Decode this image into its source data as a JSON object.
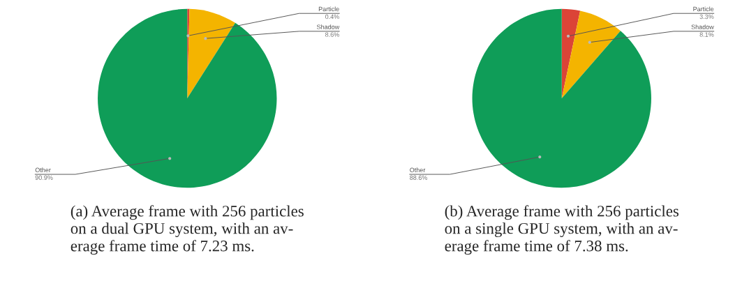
{
  "chart_data": [
    {
      "type": "pie",
      "categories": [
        "Particle",
        "Shadow",
        "Other"
      ],
      "values": [
        0.4,
        8.6,
        90.9
      ],
      "value_labels": [
        "0.4%",
        "8.6%",
        "90.9%"
      ],
      "colors": [
        "#db4437",
        "#f4b400",
        "#0f9d58"
      ],
      "annotations": [
        "(a) Average frame with 256 particles\non a dual GPU system, with an av-\nerage frame time of 7.23 ms."
      ]
    },
    {
      "type": "pie",
      "categories": [
        "Particle",
        "Shadow",
        "Other"
      ],
      "values": [
        3.3,
        8.1,
        88.6
      ],
      "value_labels": [
        "3.3%",
        "8.1%",
        "88.6%"
      ],
      "colors": [
        "#db4437",
        "#f4b400",
        "#0f9d58"
      ],
      "annotations": [
        "(b) Average frame with 256 particles\non a single GPU system, with an av-\nerage frame time of 7.38 ms."
      ]
    }
  ]
}
